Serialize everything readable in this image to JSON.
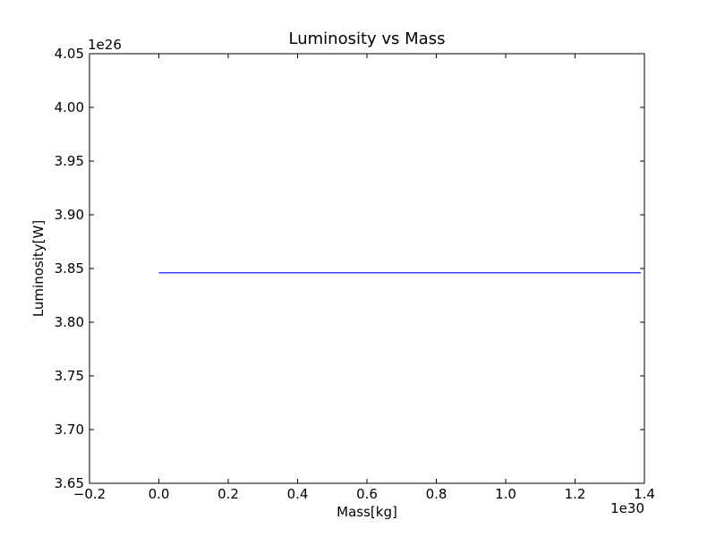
{
  "chart_data": {
    "type": "line",
    "title": "Luminosity vs Mass",
    "xlabel": "Mass[kg]",
    "ylabel": "Luminosity[W]",
    "x_offset_label": "1e30",
    "y_offset_label": "1e26",
    "xlim": [
      -0.2,
      1.4
    ],
    "ylim": [
      3.65,
      4.05
    ],
    "xticks": [
      "-0.2",
      "0.0",
      "0.2",
      "0.4",
      "0.6",
      "0.8",
      "1.0",
      "1.2",
      "1.4"
    ],
    "yticks": [
      "3.65",
      "3.70",
      "3.75",
      "3.80",
      "3.85",
      "3.90",
      "3.95",
      "4.00",
      "4.05"
    ],
    "grid": false,
    "series": [
      {
        "color": "#0000ff",
        "x": [
          0.0,
          1.39
        ],
        "y": [
          3.846,
          3.846
        ]
      }
    ]
  }
}
